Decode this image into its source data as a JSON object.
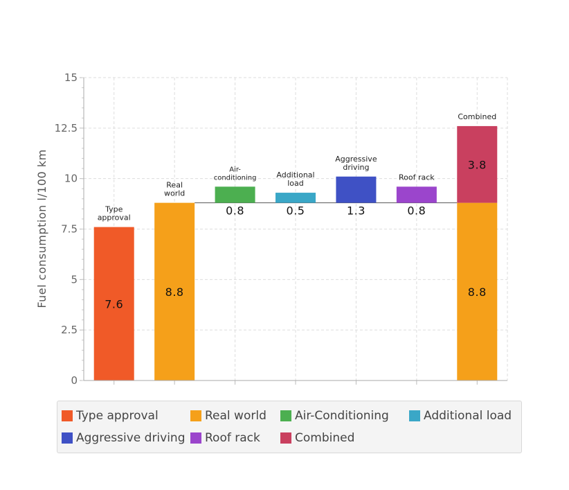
{
  "chart_data": {
    "type": "bar",
    "ylabel": "Fuel consumption l/100 km",
    "ylim": [
      0,
      15
    ],
    "yticks": [
      "0",
      "2.5",
      "5",
      "7.5",
      "10",
      "12.5",
      "15"
    ],
    "grid": true,
    "legend_position": "bottom",
    "baseline_value": 8.8,
    "bars": [
      {
        "label": "Type approval",
        "top_label": [
          "Type",
          "approval"
        ],
        "base": 0,
        "value": 7.6,
        "value_text": "7.6",
        "color": "#f05a28",
        "value_pos": "inside"
      },
      {
        "label": "Real world",
        "top_label": [
          "Real",
          "world"
        ],
        "base": 0,
        "value": 8.8,
        "value_text": "8.8",
        "color": "#f5a01a",
        "value_pos": "inside"
      },
      {
        "label": "Air-Conditioning",
        "top_label": [
          "Air-",
          "conditioning"
        ],
        "base": 8.8,
        "value": 0.8,
        "value_text": "0.8",
        "color": "#4caf50",
        "value_pos": "below"
      },
      {
        "label": "Additional load",
        "top_label": [
          "Additional",
          "load"
        ],
        "base": 8.8,
        "value": 0.5,
        "value_text": "0.5",
        "color": "#3aa7c7",
        "value_pos": "below"
      },
      {
        "label": "Aggressive driving",
        "top_label": [
          "Aggressive",
          "driving"
        ],
        "base": 8.8,
        "value": 1.3,
        "value_text": "1.3",
        "color": "#3f51c5",
        "value_pos": "below"
      },
      {
        "label": "Roof rack",
        "top_label": [
          "Roof rack"
        ],
        "base": 8.8,
        "value": 0.8,
        "value_text": "0.8",
        "color": "#9b45cc",
        "value_pos": "below"
      },
      {
        "label": "Combined",
        "top_label": [
          "Combined"
        ],
        "stack": [
          {
            "value": 8.8,
            "value_text": "8.8",
            "color": "#f5a01a"
          },
          {
            "value": 3.8,
            "value_text": "3.8",
            "color": "#c9405f"
          }
        ]
      }
    ],
    "legend": [
      {
        "name": "Type approval",
        "color": "#f05a28"
      },
      {
        "name": "Real world",
        "color": "#f5a01a"
      },
      {
        "name": "Air-Conditioning",
        "color": "#4caf50"
      },
      {
        "name": "Additional load",
        "color": "#3aa7c7"
      },
      {
        "name": "Aggressive driving",
        "color": "#3f51c5"
      },
      {
        "name": "Roof rack",
        "color": "#9b45cc"
      },
      {
        "name": "Combined",
        "color": "#c9405f"
      }
    ]
  }
}
